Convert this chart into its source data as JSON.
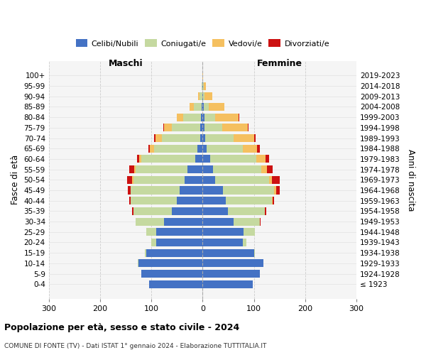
{
  "age_groups": [
    "100+",
    "95-99",
    "90-94",
    "85-89",
    "80-84",
    "75-79",
    "70-74",
    "65-69",
    "60-64",
    "55-59",
    "50-54",
    "45-49",
    "40-44",
    "35-39",
    "30-34",
    "25-29",
    "20-24",
    "15-19",
    "10-14",
    "5-9",
    "0-4"
  ],
  "birth_years": [
    "≤ 1923",
    "1924-1928",
    "1929-1933",
    "1934-1938",
    "1939-1943",
    "1944-1948",
    "1949-1953",
    "1954-1958",
    "1959-1963",
    "1964-1968",
    "1969-1973",
    "1974-1978",
    "1979-1983",
    "1984-1988",
    "1989-1993",
    "1994-1998",
    "1999-2003",
    "2004-2008",
    "2009-2013",
    "2014-2018",
    "2019-2023"
  ],
  "maschi_celibi": [
    0,
    0,
    1,
    2,
    3,
    5,
    5,
    10,
    15,
    30,
    35,
    45,
    50,
    60,
    75,
    90,
    90,
    110,
    125,
    120,
    105
  ],
  "maschi_coniugati": [
    0,
    2,
    5,
    15,
    35,
    55,
    75,
    85,
    105,
    100,
    100,
    95,
    90,
    75,
    55,
    20,
    10,
    3,
    1,
    0,
    0
  ],
  "maschi_vedovi": [
    0,
    0,
    3,
    8,
    12,
    15,
    12,
    8,
    4,
    3,
    2,
    1,
    0,
    0,
    0,
    0,
    0,
    0,
    0,
    0,
    0
  ],
  "maschi_divorziati": [
    0,
    0,
    0,
    0,
    1,
    2,
    3,
    3,
    4,
    10,
    10,
    5,
    3,
    2,
    1,
    0,
    0,
    0,
    0,
    0,
    0
  ],
  "femmine_nubili": [
    0,
    1,
    1,
    2,
    3,
    3,
    5,
    8,
    15,
    20,
    25,
    40,
    45,
    50,
    60,
    80,
    78,
    100,
    118,
    112,
    98
  ],
  "femmine_coniugate": [
    0,
    1,
    3,
    10,
    22,
    35,
    55,
    70,
    90,
    95,
    105,
    100,
    90,
    72,
    52,
    22,
    8,
    2,
    1,
    0,
    0
  ],
  "femmine_vedove": [
    1,
    5,
    15,
    30,
    45,
    50,
    40,
    28,
    18,
    10,
    5,
    3,
    1,
    0,
    0,
    0,
    0,
    0,
    0,
    0,
    0
  ],
  "femmine_divorziate": [
    0,
    0,
    0,
    0,
    1,
    2,
    3,
    5,
    6,
    12,
    15,
    8,
    4,
    2,
    1,
    0,
    0,
    0,
    0,
    0,
    0
  ],
  "colors": {
    "celibi": "#4472c4",
    "coniugati": "#c5d9a0",
    "vedovi": "#f5c060",
    "divorziati": "#cc1111"
  },
  "title": "Popolazione per età, sesso e stato civile - 2024",
  "subtitle": "COMUNE DI FONTE (TV) - Dati ISTAT 1° gennaio 2024 - Elaborazione TUTTITALIA.IT",
  "ylabel": "Fasce di età",
  "ylabel_right": "Anni di nascita",
  "xlabel_left": "Maschi",
  "xlabel_right": "Femmine",
  "xlim": 300,
  "bg_color": "#f0f0f0",
  "plot_bg": "#f8f8f8"
}
